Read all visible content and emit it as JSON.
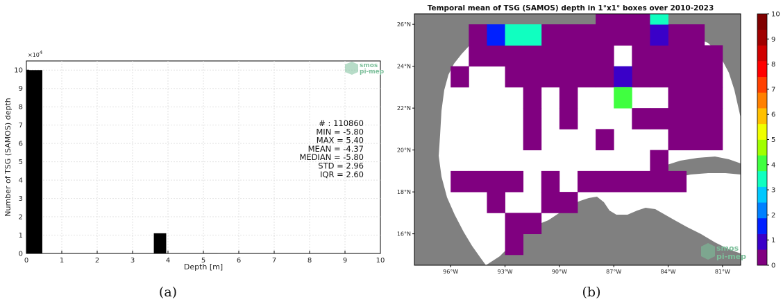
{
  "chart_data": [
    {
      "type": "bar",
      "xlabel": "Depth [m]",
      "ylabel": "Number of TSG (SAMOS) depth",
      "y_multiplier": "×10",
      "y_multiplier_exp": "4",
      "xlim": [
        0,
        10
      ],
      "ylim": [
        0,
        10.5
      ],
      "xticks": [
        "0",
        "1",
        "2",
        "3",
        "4",
        "5",
        "6",
        "7",
        "8",
        "9",
        "10"
      ],
      "yticks": [
        "0",
        "1",
        "2",
        "3",
        "4",
        "5",
        "6",
        "7",
        "8",
        "9",
        "10"
      ],
      "grid": true,
      "bins": [
        {
          "x0": 0.0,
          "x1": 0.45,
          "value": 10.0
        },
        {
          "x0": 3.6,
          "x1": 3.95,
          "value": 1.1
        },
        {
          "x0": 5.0,
          "x1": 5.4,
          "value": 0.02
        }
      ],
      "stats": [
        "# : 110860",
        "MIN = -5.80",
        "MAX =  5.40",
        "MEAN = -4.37",
        "MEDIAN = -5.80",
        "STD = 2.96",
        "IQR = 2.60"
      ],
      "caption": "(a)",
      "logo": {
        "line1": "smos",
        "line2": "pi-mep",
        "color": "#7cbf9a"
      },
      "bar_color": "#000000"
    },
    {
      "type": "heatmap",
      "title": "Temporal mean of TSG (SAMOS) depth in 1°x1° boxes over 2010-2023",
      "lon_range": [
        -98,
        -80
      ],
      "lat_range": [
        14.5,
        26.5
      ],
      "lon_ticks": [
        "96°W",
        "93°W",
        "90°W",
        "87°W",
        "84°W",
        "81°W"
      ],
      "lat_ticks": [
        "16°N",
        "18°N",
        "20°N",
        "22°N",
        "24°N",
        "26°N"
      ],
      "colorbar": {
        "min": 0,
        "max": 10,
        "ticks": [
          "0",
          "1",
          "2",
          "3",
          "4",
          "5",
          "6",
          "7",
          "8",
          "9",
          "10"
        ],
        "colors": [
          "#800080",
          "#3a00c8",
          "#0020ff",
          "#0080ff",
          "#00c8ff",
          "#10ffc0",
          "#40ff40",
          "#a0ff00",
          "#f0ff00",
          "#ffc000",
          "#ff8000",
          "#ff4000",
          "#ff0000",
          "#d00000",
          "#a00000",
          "#800000"
        ]
      },
      "land_color": "#808080",
      "cells": [
        {
          "lon": -94,
          "lat": 25,
          "value": 1.8
        },
        {
          "lon": -93,
          "lat": 25,
          "value": 3.6
        },
        {
          "lon": -92,
          "lat": 25,
          "value": 3.6
        },
        {
          "lon": -85,
          "lat": 25,
          "value": 0.9
        },
        {
          "lon": -85,
          "lat": 26,
          "value": 3.6
        },
        {
          "lon": -87,
          "lat": 23,
          "value": 1.1
        },
        {
          "lon": -87,
          "lat": 22,
          "value": 3.9
        }
      ],
      "zero_cells": [
        [
          -95,
          25
        ],
        [
          -91,
          25
        ],
        [
          -90,
          25
        ],
        [
          -89,
          25
        ],
        [
          -88,
          25
        ],
        [
          -87,
          25
        ],
        [
          -86,
          25
        ],
        [
          -84,
          25
        ],
        [
          -83,
          25
        ],
        [
          -88,
          26
        ],
        [
          -87,
          26
        ],
        [
          -86,
          26
        ],
        [
          -95,
          24
        ],
        [
          -94,
          24
        ],
        [
          -93,
          24
        ],
        [
          -92,
          24
        ],
        [
          -91,
          24
        ],
        [
          -90,
          24
        ],
        [
          -89,
          24
        ],
        [
          -88,
          24
        ],
        [
          -86,
          24
        ],
        [
          -85,
          24
        ],
        [
          -84,
          24
        ],
        [
          -83,
          24
        ],
        [
          -82,
          24
        ],
        [
          -96,
          23
        ],
        [
          -93,
          23
        ],
        [
          -92,
          23
        ],
        [
          -91,
          23
        ],
        [
          -90,
          23
        ],
        [
          -89,
          23
        ],
        [
          -88,
          23
        ],
        [
          -86,
          23
        ],
        [
          -85,
          23
        ],
        [
          -84,
          23
        ],
        [
          -83,
          23
        ],
        [
          -82,
          23
        ],
        [
          -92,
          22
        ],
        [
          -90,
          22
        ],
        [
          -84,
          22
        ],
        [
          -83,
          22
        ],
        [
          -82,
          22
        ],
        [
          -92,
          21
        ],
        [
          -90,
          21
        ],
        [
          -86,
          21
        ],
        [
          -85,
          21
        ],
        [
          -84,
          21
        ],
        [
          -83,
          21
        ],
        [
          -82,
          21
        ],
        [
          -92,
          20
        ],
        [
          -88,
          20
        ],
        [
          -84,
          20
        ],
        [
          -83,
          20
        ],
        [
          -82,
          20
        ],
        [
          -85,
          19
        ],
        [
          -96,
          18
        ],
        [
          -95,
          18
        ],
        [
          -94,
          18
        ],
        [
          -93,
          18
        ],
        [
          -91,
          18
        ],
        [
          -89,
          18
        ],
        [
          -88,
          18
        ],
        [
          -87,
          18
        ],
        [
          -86,
          18
        ],
        [
          -85,
          18
        ],
        [
          -84,
          18
        ],
        [
          -94,
          17
        ],
        [
          -91,
          17
        ],
        [
          -90,
          17
        ],
        [
          -93,
          16
        ],
        [
          -92,
          16
        ],
        [
          -93,
          15
        ]
      ],
      "caption": "(b)",
      "logo": {
        "line1": "smos",
        "line2": "pi-mep",
        "color": "#7cbf9a"
      }
    }
  ]
}
